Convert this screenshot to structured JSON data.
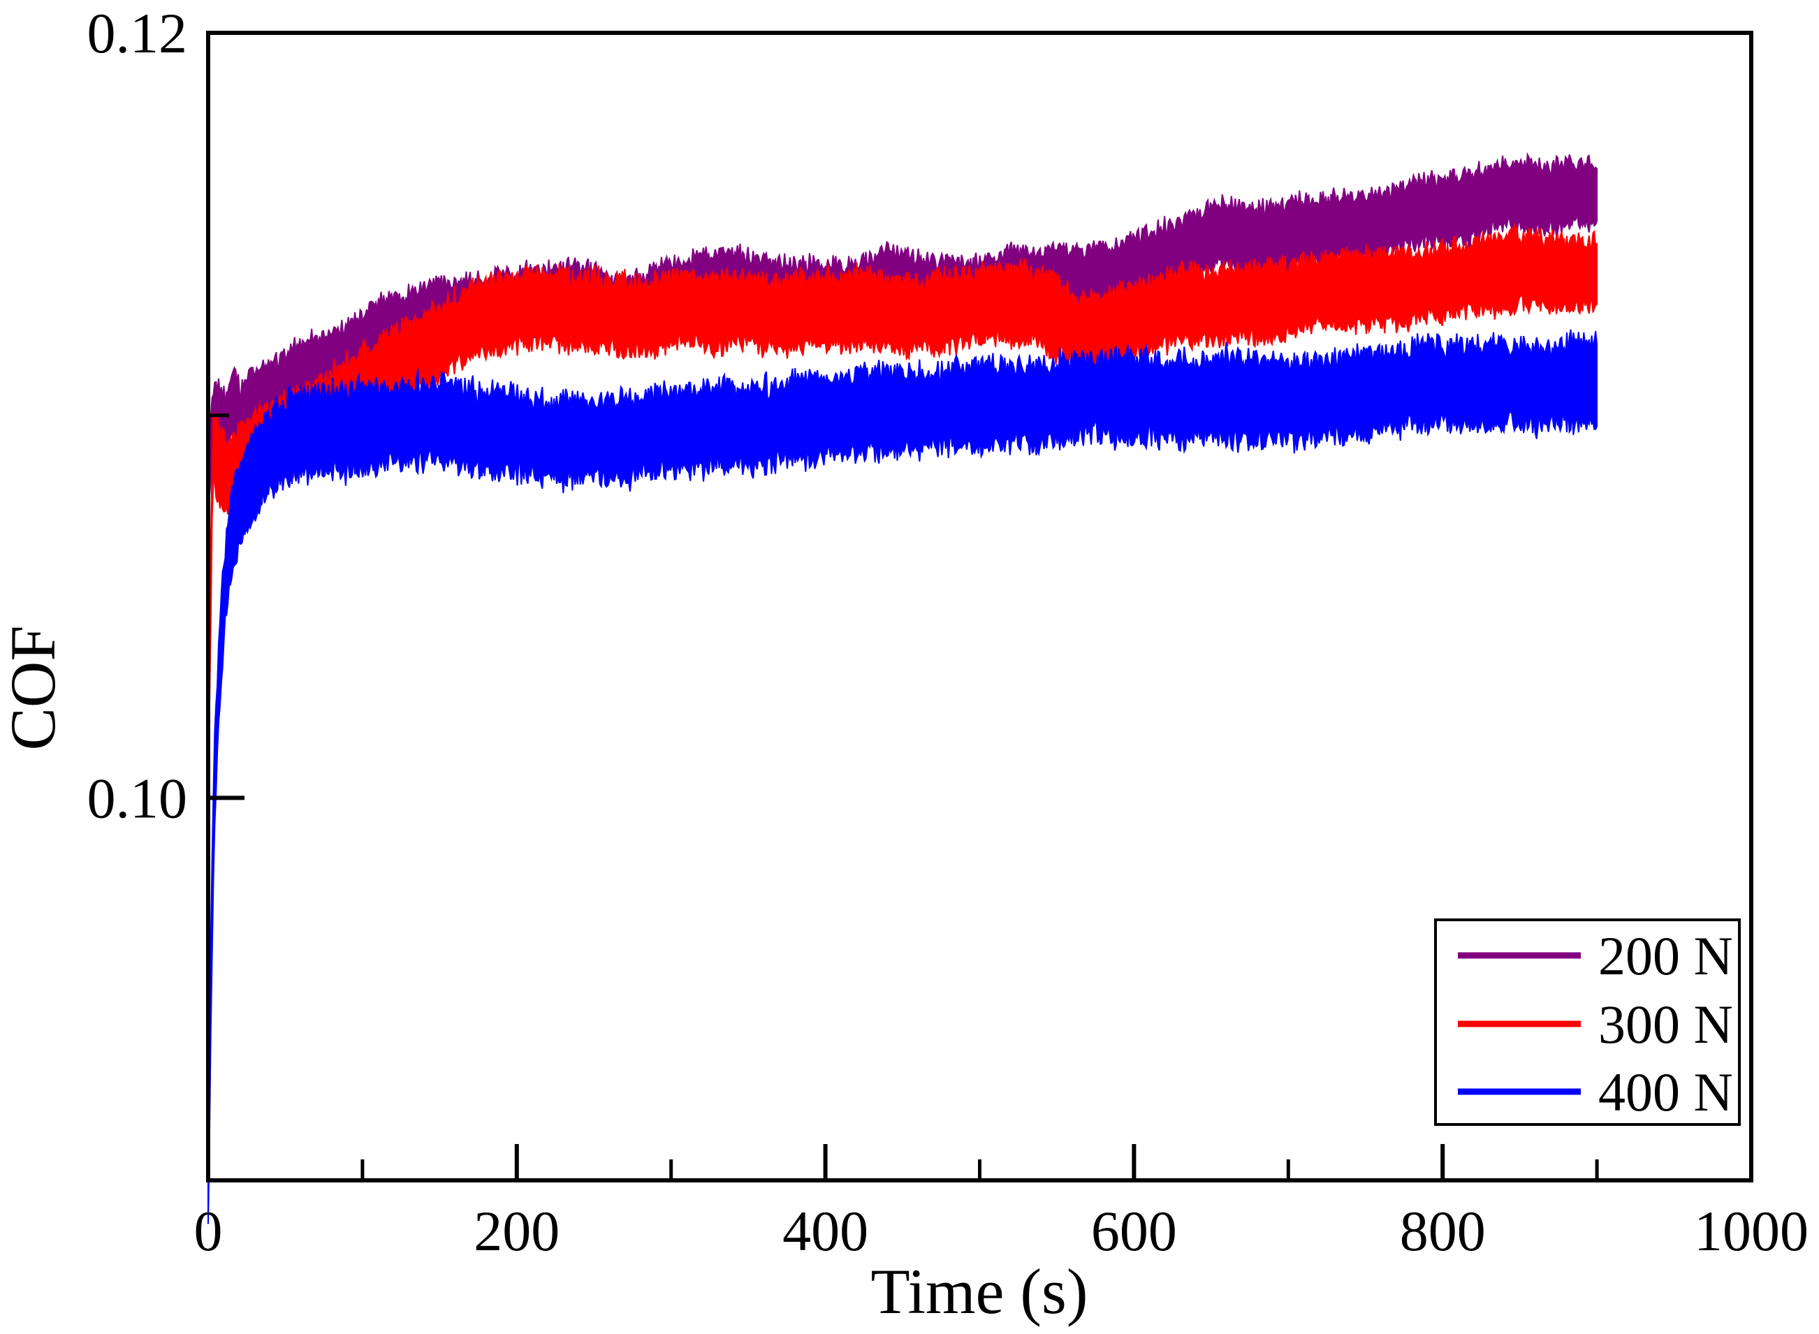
{
  "chart_data": {
    "type": "line",
    "title": "",
    "xlabel": "Time (s)",
    "ylabel": "COF",
    "xlim": [
      0,
      1000
    ],
    "ylim": [
      0.09,
      0.12
    ],
    "grid": false,
    "x_major_ticks": [
      0,
      200,
      400,
      600,
      800,
      1000
    ],
    "x_minor_ticks": [
      100,
      300,
      500,
      700,
      900
    ],
    "y_major_ticks": [
      {
        "value": 0.1,
        "label": "0.10"
      },
      {
        "value": 0.12,
        "label": "0.12"
      }
    ],
    "y_minor_ticks": [
      0.11
    ],
    "legend": {
      "position": "bottom-right",
      "entries": [
        {
          "label": "200 N",
          "color": "#800080"
        },
        {
          "label": "300 N",
          "color": "#ff0000"
        },
        {
          "label": "400 N",
          "color": "#0000ff"
        }
      ]
    },
    "series": [
      {
        "name": "200 N",
        "color": "#800080",
        "band_halfwidth": 0.00075,
        "edge_jitter": 0.00028,
        "drift": 0.00016,
        "points": [
          [
            0,
            0.1085
          ],
          [
            3,
            0.1098
          ],
          [
            7,
            0.1099
          ],
          [
            11,
            0.1096
          ],
          [
            16,
            0.1103
          ],
          [
            21,
            0.1098
          ],
          [
            28,
            0.1103
          ],
          [
            40,
            0.1106
          ],
          [
            55,
            0.111
          ],
          [
            75,
            0.1113
          ],
          [
            95,
            0.1117
          ],
          [
            115,
            0.1121
          ],
          [
            135,
            0.1124
          ],
          [
            160,
            0.1127
          ],
          [
            185,
            0.1129
          ],
          [
            215,
            0.113
          ],
          [
            245,
            0.113
          ],
          [
            270,
            0.1128
          ],
          [
            295,
            0.1132
          ],
          [
            320,
            0.1134
          ],
          [
            345,
            0.1133
          ],
          [
            370,
            0.1131
          ],
          [
            395,
            0.1132
          ],
          [
            420,
            0.1131
          ],
          [
            445,
            0.1134
          ],
          [
            470,
            0.1132
          ],
          [
            495,
            0.1133
          ],
          [
            515,
            0.1135
          ],
          [
            535,
            0.1135
          ],
          [
            550,
            0.1136
          ],
          [
            565,
            0.1134
          ],
          [
            580,
            0.1136
          ],
          [
            600,
            0.1139
          ],
          [
            620,
            0.1141
          ],
          [
            640,
            0.1144
          ],
          [
            655,
            0.1146
          ],
          [
            670,
            0.1145
          ],
          [
            690,
            0.1146
          ],
          [
            705,
            0.1148
          ],
          [
            720,
            0.1149
          ],
          [
            735,
            0.115
          ],
          [
            750,
            0.1149
          ],
          [
            765,
            0.1151
          ],
          [
            780,
            0.1153
          ],
          [
            795,
            0.1154
          ],
          [
            810,
            0.1155
          ],
          [
            825,
            0.1157
          ],
          [
            840,
            0.1158
          ],
          [
            855,
            0.1157
          ],
          [
            870,
            0.1156
          ],
          [
            885,
            0.1157
          ],
          [
            900,
            0.1157
          ]
        ]
      },
      {
        "name": "300 N",
        "color": "#ff0000",
        "band_halfwidth": 0.00082,
        "edge_jitter": 0.00032,
        "drift": 0.00016,
        "points": [
          [
            0,
            0.101
          ],
          [
            3,
            0.1092
          ],
          [
            8,
            0.1086
          ],
          [
            13,
            0.1083
          ],
          [
            20,
            0.1087
          ],
          [
            30,
            0.1091
          ],
          [
            45,
            0.1094
          ],
          [
            60,
            0.1097
          ],
          [
            80,
            0.1101
          ],
          [
            100,
            0.1107
          ],
          [
            120,
            0.1113
          ],
          [
            140,
            0.1118
          ],
          [
            160,
            0.1123
          ],
          [
            175,
            0.1126
          ],
          [
            195,
            0.1127
          ],
          [
            225,
            0.1128
          ],
          [
            255,
            0.1127
          ],
          [
            285,
            0.1125
          ],
          [
            305,
            0.1127
          ],
          [
            325,
            0.1126
          ],
          [
            345,
            0.1128
          ],
          [
            365,
            0.1127
          ],
          [
            385,
            0.1128
          ],
          [
            405,
            0.1127
          ],
          [
            425,
            0.1128
          ],
          [
            445,
            0.1127
          ],
          [
            465,
            0.1128
          ],
          [
            485,
            0.1128
          ],
          [
            505,
            0.1129
          ],
          [
            525,
            0.1128
          ],
          [
            545,
            0.1126
          ],
          [
            562,
            0.1123
          ],
          [
            578,
            0.1122
          ],
          [
            592,
            0.1124
          ],
          [
            610,
            0.1126
          ],
          [
            630,
            0.1128
          ],
          [
            650,
            0.1129
          ],
          [
            670,
            0.113
          ],
          [
            690,
            0.1131
          ],
          [
            710,
            0.1132
          ],
          [
            730,
            0.1132
          ],
          [
            750,
            0.1133
          ],
          [
            770,
            0.1133
          ],
          [
            790,
            0.1135
          ],
          [
            810,
            0.1135
          ],
          [
            830,
            0.1136
          ],
          [
            850,
            0.1137
          ],
          [
            870,
            0.1137
          ],
          [
            900,
            0.1138
          ]
        ]
      },
      {
        "name": "400 N",
        "color": "#0000ff",
        "band_halfwidth": 0.00095,
        "edge_jitter": 0.00035,
        "drift": 0.00016,
        "points": [
          [
            0,
            0.09
          ],
          [
            2,
            0.096
          ],
          [
            4,
            0.1002
          ],
          [
            7,
            0.1032
          ],
          [
            11,
            0.1055
          ],
          [
            15,
            0.1068
          ],
          [
            20,
            0.1075
          ],
          [
            27,
            0.1082
          ],
          [
            35,
            0.1087
          ],
          [
            45,
            0.1091
          ],
          [
            60,
            0.1094
          ],
          [
            80,
            0.1096
          ],
          [
            100,
            0.1097
          ],
          [
            125,
            0.1098
          ],
          [
            150,
            0.1098
          ],
          [
            175,
            0.1097
          ],
          [
            200,
            0.1096
          ],
          [
            225,
            0.1094
          ],
          [
            250,
            0.1093
          ],
          [
            270,
            0.1093
          ],
          [
            290,
            0.1095
          ],
          [
            310,
            0.1097
          ],
          [
            330,
            0.1097
          ],
          [
            350,
            0.1096
          ],
          [
            365,
            0.1097
          ],
          [
            385,
            0.1099
          ],
          [
            405,
            0.1101
          ],
          [
            425,
            0.1102
          ],
          [
            445,
            0.1102
          ],
          [
            465,
            0.1101
          ],
          [
            485,
            0.1102
          ],
          [
            505,
            0.1103
          ],
          [
            530,
            0.1103
          ],
          [
            555,
            0.1103
          ],
          [
            580,
            0.1104
          ],
          [
            605,
            0.1104
          ],
          [
            630,
            0.1105
          ],
          [
            655,
            0.1105
          ],
          [
            680,
            0.1104
          ],
          [
            705,
            0.1104
          ],
          [
            730,
            0.1106
          ],
          [
            755,
            0.1106
          ],
          [
            780,
            0.1107
          ],
          [
            805,
            0.1107
          ],
          [
            830,
            0.1108
          ],
          [
            855,
            0.1108
          ],
          [
            880,
            0.1108
          ],
          [
            900,
            0.1108
          ]
        ]
      }
    ],
    "t_end": 900
  }
}
